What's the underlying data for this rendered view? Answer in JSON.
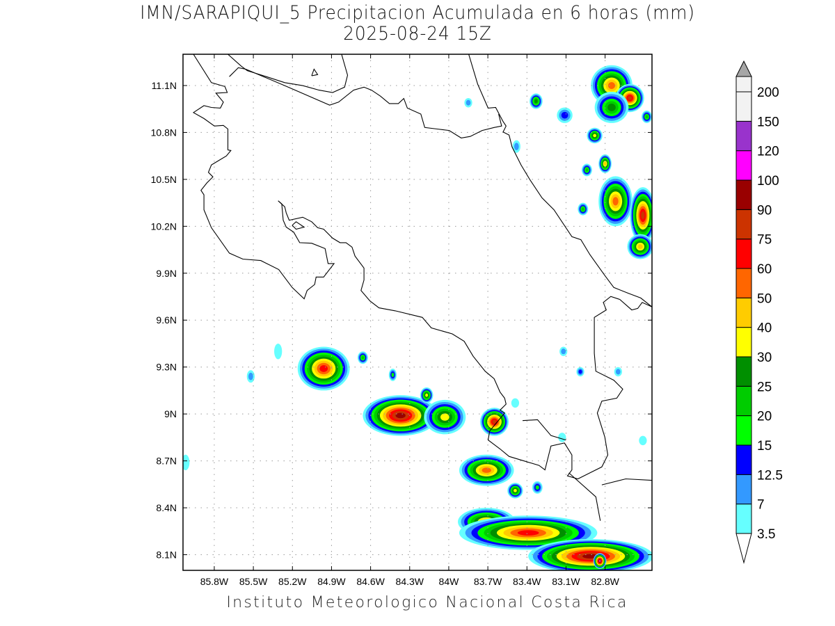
{
  "title": {
    "line1": "IMN/SARAPIQUI_5 Precipitacion Acumulada en 6 horas (mm)",
    "line2": "2025-08-24 15Z"
  },
  "footer": "Instituto Meteorologico Nacional Costa Rica",
  "map": {
    "lon_range": [
      -86.04,
      -82.44
    ],
    "lat_range": [
      8.0,
      11.3
    ],
    "grid": "dotted",
    "lon_ticks": [
      {
        "value": -85.8,
        "label": "85.8W"
      },
      {
        "value": -85.5,
        "label": "85.5W"
      },
      {
        "value": -85.2,
        "label": "85.2W"
      },
      {
        "value": -84.9,
        "label": "84.9W"
      },
      {
        "value": -84.6,
        "label": "84.6W"
      },
      {
        "value": -84.3,
        "label": "84.3W"
      },
      {
        "value": -84.0,
        "label": "84W"
      },
      {
        "value": -83.7,
        "label": "83.7W"
      },
      {
        "value": -83.4,
        "label": "83.4W"
      },
      {
        "value": -83.1,
        "label": "83.1W"
      },
      {
        "value": -82.8,
        "label": "82.8W"
      }
    ],
    "lat_ticks": [
      {
        "value": 11.1,
        "label": "11.1N"
      },
      {
        "value": 10.8,
        "label": "10.8N"
      },
      {
        "value": 10.5,
        "label": "10.5N"
      },
      {
        "value": 10.2,
        "label": "10.2N"
      },
      {
        "value": 9.9,
        "label": "9.9N"
      },
      {
        "value": 9.6,
        "label": "9.6N"
      },
      {
        "value": 9.3,
        "label": "9.3N"
      },
      {
        "value": 9.0,
        "label": "9N"
      },
      {
        "value": 8.7,
        "label": "8.7N"
      },
      {
        "value": 8.4,
        "label": "8.4N"
      },
      {
        "value": 8.1,
        "label": "8.1N"
      }
    ]
  },
  "colorbar": {
    "levels": [
      "3.5",
      "7",
      "12.5",
      "15",
      "20",
      "25",
      "30",
      "40",
      "50",
      "60",
      "75",
      "90",
      "100",
      "120",
      "150",
      "200"
    ],
    "colors": [
      "#66ffff",
      "#3399ff",
      "#0000ff",
      "#00ff00",
      "#00cc00",
      "#008f00",
      "#ffff00",
      "#ffcc00",
      "#ff6600",
      "#ff0000",
      "#cc3300",
      "#990000",
      "#ff00ff",
      "#9933cc",
      "#f2f2f2"
    ],
    "over_color": "#a6a6a6",
    "under_color": "#ffffff"
  },
  "chart_data": {
    "type": "heatmap",
    "units": "mm",
    "cells": [
      {
        "lon": -84.96,
        "lat": 9.29,
        "rlon": 0.2,
        "rlat": 0.14,
        "peak": 60
      },
      {
        "lon": -84.37,
        "lat": 8.99,
        "rlon": 0.29,
        "rlat": 0.13,
        "peak": 90
      },
      {
        "lon": -84.03,
        "lat": 8.98,
        "rlon": 0.16,
        "rlat": 0.11,
        "peak": 30
      },
      {
        "lon": -83.65,
        "lat": 8.95,
        "rlon": 0.11,
        "rlat": 0.09,
        "peak": 75
      },
      {
        "lon": -83.71,
        "lat": 8.64,
        "rlon": 0.21,
        "rlat": 0.1,
        "peak": 50
      },
      {
        "lon": -83.49,
        "lat": 8.51,
        "rlon": 0.06,
        "rlat": 0.05,
        "peak": 30
      },
      {
        "lon": -84.17,
        "lat": 9.12,
        "rlon": 0.05,
        "rlat": 0.05,
        "peak": 30
      },
      {
        "lon": -84.66,
        "lat": 9.36,
        "rlon": 0.04,
        "rlat": 0.04,
        "peak": 20
      },
      {
        "lon": -84.43,
        "lat": 9.25,
        "rlon": 0.03,
        "rlat": 0.04,
        "peak": 15
      },
      {
        "lon": -83.71,
        "lat": 8.31,
        "rlon": 0.22,
        "rlat": 0.09,
        "peak": 40
      },
      {
        "lon": -83.39,
        "lat": 8.24,
        "rlon": 0.53,
        "rlat": 0.11,
        "peak": 60
      },
      {
        "lon": -82.91,
        "lat": 8.09,
        "rlon": 0.48,
        "rlat": 0.11,
        "peak": 90
      },
      {
        "lon": -82.84,
        "lat": 8.06,
        "rlon": 0.05,
        "rlat": 0.05,
        "peak": 100
      },
      {
        "lon": -82.75,
        "lat": 11.1,
        "rlon": 0.16,
        "rlat": 0.13,
        "peak": 50
      },
      {
        "lon": -82.61,
        "lat": 11.02,
        "rlon": 0.11,
        "rlat": 0.09,
        "peak": 75
      },
      {
        "lon": -82.75,
        "lat": 10.96,
        "rlon": 0.13,
        "rlat": 0.1,
        "peak": 25
      },
      {
        "lon": -82.72,
        "lat": 10.36,
        "rlon": 0.13,
        "rlat": 0.16,
        "peak": 50
      },
      {
        "lon": -82.51,
        "lat": 10.27,
        "rlon": 0.1,
        "rlat": 0.18,
        "peak": 75
      },
      {
        "lon": -82.53,
        "lat": 10.07,
        "rlon": 0.1,
        "rlat": 0.08,
        "peak": 40
      },
      {
        "lon": -82.88,
        "lat": 10.78,
        "rlon": 0.06,
        "rlat": 0.05,
        "peak": 30
      },
      {
        "lon": -82.8,
        "lat": 10.6,
        "rlon": 0.05,
        "rlat": 0.06,
        "peak": 40
      },
      {
        "lon": -83.33,
        "lat": 11.0,
        "rlon": 0.05,
        "rlat": 0.05,
        "peak": 25
      },
      {
        "lon": -82.94,
        "lat": 10.56,
        "rlon": 0.04,
        "rlat": 0.04,
        "peak": 20
      },
      {
        "lon": -82.97,
        "lat": 10.31,
        "rlon": 0.04,
        "rlat": 0.04,
        "peak": 20
      },
      {
        "lon": -82.48,
        "lat": 10.9,
        "rlon": 0.04,
        "rlat": 0.04,
        "peak": 20
      },
      {
        "lon": -83.11,
        "lat": 10.91,
        "rlon": 0.06,
        "rlat": 0.05,
        "peak": 12.5
      },
      {
        "lon": -85.31,
        "lat": 9.4,
        "rlon": 0.03,
        "rlat": 0.05,
        "peak": 3.5
      },
      {
        "lon": -85.52,
        "lat": 9.24,
        "rlon": 0.03,
        "rlat": 0.04,
        "peak": 7
      },
      {
        "lon": -86.02,
        "lat": 8.69,
        "rlon": 0.03,
        "rlat": 0.05,
        "peak": 3.5
      },
      {
        "lon": -82.99,
        "lat": 9.27,
        "rlon": 0.03,
        "rlat": 0.03,
        "peak": 12.5
      },
      {
        "lon": -83.12,
        "lat": 9.4,
        "rlon": 0.03,
        "rlat": 0.03,
        "peak": 7
      },
      {
        "lon": -82.7,
        "lat": 9.27,
        "rlon": 0.03,
        "rlat": 0.03,
        "peak": 7
      },
      {
        "lon": -82.51,
        "lat": 8.83,
        "rlon": 0.03,
        "rlat": 0.03,
        "peak": 3.5
      },
      {
        "lon": -83.13,
        "lat": 8.85,
        "rlon": 0.03,
        "rlat": 0.03,
        "peak": 3.5
      },
      {
        "lon": -83.49,
        "lat": 9.07,
        "rlon": 0.03,
        "rlat": 0.03,
        "peak": 3.5
      },
      {
        "lon": -83.32,
        "lat": 8.53,
        "rlon": 0.04,
        "rlat": 0.04,
        "peak": 15
      },
      {
        "lon": -83.48,
        "lat": 10.71,
        "rlon": 0.03,
        "rlat": 0.04,
        "peak": 7
      },
      {
        "lon": -83.85,
        "lat": 10.99,
        "rlon": 0.03,
        "rlat": 0.03,
        "peak": 7
      }
    ]
  }
}
